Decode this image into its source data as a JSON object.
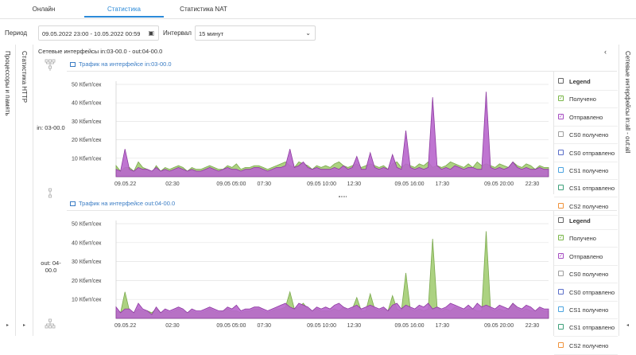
{
  "tabs": [
    {
      "label": "Онлайн"
    },
    {
      "label": "Статистика"
    },
    {
      "label": "Статистика NAT"
    }
  ],
  "filter": {
    "period_label": "Период",
    "period_value": "09.05.2022 23:00 - 10.05.2022 00:59",
    "interval_label": "Интервал",
    "interval_value": "15 минут"
  },
  "left_sidebar": {
    "label": "Процессоры и память"
  },
  "left_sidebar2": {
    "label": "Статистика HTTP"
  },
  "right_sidebar": {
    "label": "Сетевые интерфейсы in:all - out:all"
  },
  "main": {
    "title": "Сетевые интерфейсы in:03-00.0 - out:04-00.0"
  },
  "interfaces": [
    {
      "label": "in: 03-00.0"
    },
    {
      "label": "out: 04-00.0"
    }
  ],
  "colors": {
    "received": "#a8d07a",
    "received_stroke": "#7aa84d",
    "sent": "#b866cc",
    "sent_stroke": "#8d3aa0",
    "accent": "#2b8ad8"
  },
  "legend": {
    "header": "Legend",
    "items": [
      {
        "label": "Получено",
        "color": "#7ab648",
        "checked": true
      },
      {
        "label": "Отправлено",
        "color": "#a64cc2",
        "checked": true
      },
      {
        "label": "CS0 получено",
        "color": "#9e9e9e",
        "checked": false
      },
      {
        "label": "CS0 отправлено",
        "color": "#5b6fc9",
        "checked": false
      },
      {
        "label": "CS1 получено",
        "color": "#4aa3e0",
        "checked": false
      },
      {
        "label": "CS1 отправлено",
        "color": "#3ea07a",
        "checked": false
      },
      {
        "label": "CS2 получено",
        "color": "#f0923a",
        "checked": false
      }
    ]
  },
  "chart_data": [
    {
      "type": "area",
      "title": "Трафик на интерфейсе in:03-00.0",
      "y_ticks": [
        "50 Кбит/сек",
        "40 Кбит/сек",
        "30 Кбит/сек",
        "20 Кбит/сек",
        "10 Кбит/сек"
      ],
      "ylim": [
        0,
        50
      ],
      "x_ticks": [
        "09.05.22",
        "02:30",
        "09.05 05:00",
        "07:30",
        "09.05 10:00",
        "12:30",
        "09.05 16:00",
        "17:30",
        "09.05 20:00",
        "22:30"
      ],
      "series": [
        {
          "name": "Получено",
          "values": [
            6,
            3,
            5,
            5,
            3,
            8,
            5,
            4,
            2,
            6,
            3,
            5,
            4,
            5,
            6,
            5,
            3,
            5,
            4,
            4,
            5,
            6,
            5,
            4,
            4,
            6,
            5,
            7,
            4,
            5,
            5,
            6,
            6,
            5,
            4,
            5,
            6,
            7,
            8,
            6,
            5,
            8,
            7,
            6,
            4,
            6,
            5,
            6,
            5,
            7,
            8,
            6,
            5,
            6,
            7,
            5,
            6,
            7,
            6,
            5,
            6,
            4,
            7,
            8,
            5,
            7,
            6,
            5,
            7,
            6,
            8,
            5,
            6,
            5,
            6,
            8,
            7,
            6,
            5,
            7,
            5,
            8,
            6,
            7,
            6,
            5,
            7,
            6,
            5,
            8,
            6,
            5,
            7,
            6,
            4,
            6,
            5,
            5
          ]
        },
        {
          "name": "Отправлено",
          "values": [
            4,
            3,
            15,
            4,
            3,
            5,
            4,
            4,
            3,
            5,
            3,
            4,
            3,
            4,
            5,
            4,
            3,
            4,
            3,
            3,
            4,
            5,
            4,
            3,
            4,
            5,
            4,
            4,
            3,
            4,
            4,
            5,
            5,
            4,
            3,
            4,
            5,
            5,
            6,
            15,
            5,
            6,
            8,
            5,
            4,
            5,
            4,
            4,
            4,
            5,
            4,
            6,
            4,
            5,
            11,
            4,
            4,
            13,
            5,
            4,
            5,
            4,
            12,
            5,
            4,
            25,
            5,
            4,
            5,
            4,
            5,
            43,
            6,
            4,
            5,
            4,
            6,
            5,
            4,
            5,
            5,
            4,
            4,
            46,
            5,
            4,
            5,
            4,
            5,
            8,
            5,
            4,
            5,
            4,
            4,
            5,
            4,
            4
          ]
        }
      ]
    },
    {
      "type": "area",
      "title": "Трафик на интерфейсе out:04-00.0",
      "y_ticks": [
        "50 Кбит/сек",
        "40 Кбит/сек",
        "30 Кбит/сек",
        "20 Кбит/сек",
        "10 Кбит/сек"
      ],
      "ylim": [
        0,
        50
      ],
      "x_ticks": [
        "09.05.22",
        "02:30",
        "09.05 05:00",
        "07:30",
        "09.05 10:00",
        "12:30",
        "09.05 16:00",
        "17:30",
        "09.05 20:00",
        "22:30"
      ],
      "series": [
        {
          "name": "Получено",
          "values": [
            4,
            3,
            14,
            4,
            3,
            5,
            4,
            4,
            3,
            5,
            3,
            4,
            3,
            4,
            5,
            4,
            3,
            4,
            3,
            3,
            4,
            5,
            4,
            3,
            4,
            5,
            4,
            4,
            3,
            4,
            4,
            5,
            5,
            4,
            3,
            4,
            5,
            5,
            6,
            14,
            5,
            6,
            8,
            5,
            4,
            5,
            4,
            4,
            4,
            5,
            4,
            6,
            4,
            5,
            11,
            4,
            4,
            13,
            5,
            4,
            5,
            4,
            12,
            5,
            4,
            24,
            5,
            4,
            5,
            4,
            5,
            42,
            6,
            4,
            5,
            4,
            6,
            5,
            4,
            5,
            5,
            4,
            4,
            46,
            5,
            4,
            5,
            4,
            5,
            8,
            5,
            4,
            5,
            4,
            4,
            5,
            4,
            4
          ]
        },
        {
          "name": "Отправлено",
          "values": [
            6,
            3,
            5,
            5,
            3,
            8,
            5,
            4,
            2,
            6,
            3,
            5,
            4,
            5,
            6,
            5,
            3,
            5,
            4,
            4,
            5,
            6,
            5,
            4,
            4,
            6,
            5,
            7,
            4,
            5,
            5,
            6,
            6,
            5,
            4,
            5,
            6,
            7,
            8,
            6,
            5,
            8,
            7,
            6,
            4,
            6,
            5,
            6,
            5,
            7,
            8,
            6,
            5,
            6,
            7,
            5,
            6,
            7,
            6,
            5,
            6,
            4,
            7,
            8,
            5,
            7,
            6,
            5,
            7,
            6,
            8,
            5,
            6,
            5,
            6,
            8,
            7,
            6,
            5,
            7,
            5,
            8,
            6,
            7,
            6,
            5,
            7,
            6,
            5,
            8,
            6,
            5,
            7,
            6,
            4,
            6,
            5,
            5
          ]
        }
      ]
    }
  ]
}
